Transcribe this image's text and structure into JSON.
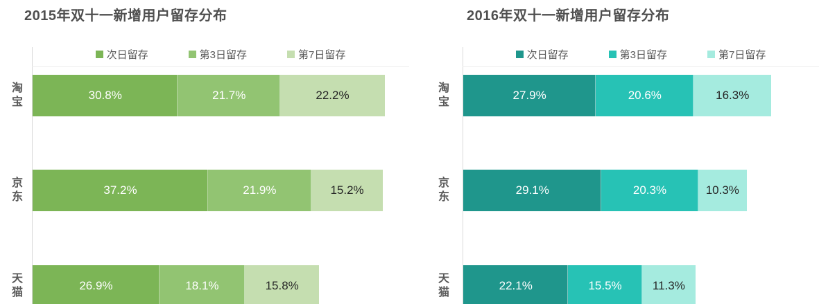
{
  "charts": [
    {
      "title": "2015年双十一新增用户留存分布",
      "axis_max": 80,
      "legend": [
        {
          "label": "次日留存",
          "color": "#7cb556",
          "label_color": "#ffffff"
        },
        {
          "label": "第3日留存",
          "color": "#92c472",
          "label_color": "#ffffff"
        },
        {
          "label": "第7日留存",
          "color": "#c5deb0",
          "label_color": "#262626"
        }
      ],
      "rows": [
        {
          "category": "淘宝",
          "values": [
            30.8,
            21.7,
            22.2
          ],
          "labels": [
            "30.8%",
            "21.7%",
            "22.2%"
          ]
        },
        {
          "category": "京东",
          "values": [
            37.2,
            21.9,
            15.2
          ],
          "labels": [
            "37.2%",
            "21.9%",
            "15.2%"
          ]
        },
        {
          "category": "天猫",
          "values": [
            26.9,
            18.1,
            15.8
          ],
          "labels": [
            "26.9%",
            "18.1%",
            "15.8%"
          ]
        }
      ]
    },
    {
      "title": "2016年双十一新增用户留存分布",
      "axis_max": 75,
      "legend": [
        {
          "label": "次日留存",
          "color": "#1f968c",
          "label_color": "#ffffff"
        },
        {
          "label": "第3日留存",
          "color": "#27c2b5",
          "label_color": "#ffffff"
        },
        {
          "label": "第7日留存",
          "color": "#a5ebdf",
          "label_color": "#262626"
        }
      ],
      "rows": [
        {
          "category": "淘宝",
          "values": [
            27.9,
            20.6,
            16.3
          ],
          "labels": [
            "27.9%",
            "20.6%",
            "16.3%"
          ]
        },
        {
          "category": "京东",
          "values": [
            29.1,
            20.3,
            10.3
          ],
          "labels": [
            "29.1%",
            "20.3%",
            "10.3%"
          ]
        },
        {
          "category": "天猫",
          "values": [
            22.1,
            15.5,
            11.3
          ],
          "labels": [
            "22.1%",
            "15.5%",
            "11.3%"
          ]
        }
      ]
    }
  ],
  "chart_data": [
    {
      "type": "bar",
      "orientation": "horizontal",
      "stacked": true,
      "title": "2015年双十一新增用户留存分布",
      "categories": [
        "淘宝",
        "京东",
        "天猫"
      ],
      "series": [
        {
          "name": "次日留存",
          "values": [
            30.8,
            37.2,
            26.9
          ],
          "color": "#7cb556"
        },
        {
          "name": "第3日留存",
          "values": [
            21.7,
            21.9,
            18.1
          ],
          "color": "#92c472"
        },
        {
          "name": "第7日留存",
          "values": [
            22.2,
            15.2,
            15.8
          ],
          "color": "#c5deb0"
        }
      ],
      "unit": "%",
      "xlim": [
        0,
        80
      ],
      "xlabel": "",
      "ylabel": "",
      "grid": false,
      "legend_position": "top",
      "data_labels": "inside-center"
    },
    {
      "type": "bar",
      "orientation": "horizontal",
      "stacked": true,
      "title": "2016年双十一新增用户留存分布",
      "categories": [
        "淘宝",
        "京东",
        "天猫"
      ],
      "series": [
        {
          "name": "次日留存",
          "values": [
            27.9,
            29.1,
            22.1
          ],
          "color": "#1f968c"
        },
        {
          "name": "第3日留存",
          "values": [
            20.6,
            20.3,
            15.5
          ],
          "color": "#27c2b5"
        },
        {
          "name": "第7日留存",
          "values": [
            16.3,
            10.3,
            11.3
          ],
          "color": "#a5ebdf"
        }
      ],
      "unit": "%",
      "xlim": [
        0,
        75
      ],
      "xlabel": "",
      "ylabel": "",
      "grid": false,
      "legend_position": "top",
      "data_labels": "inside-center"
    }
  ]
}
